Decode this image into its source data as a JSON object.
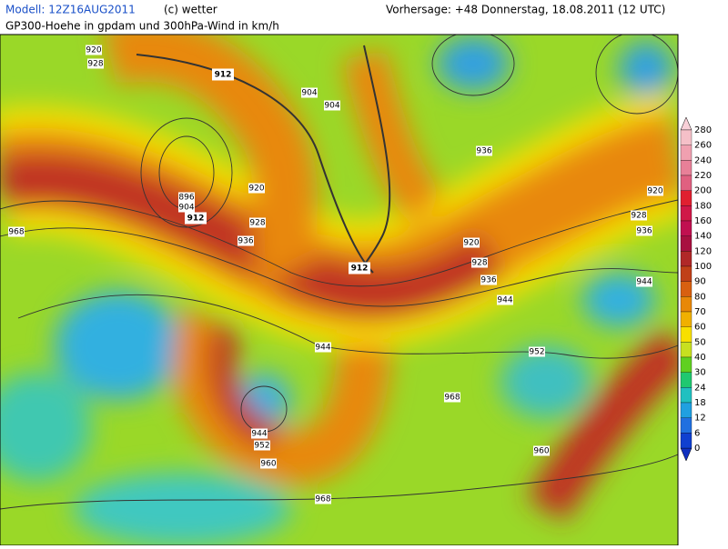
{
  "header": {
    "model": "Modell: 12Z16AUG2011",
    "copyright": "(c) wetter",
    "forecast": "Vorhersage: +48  Donnerstag, 18.08.2011 (12 UTC)",
    "subtitle": "GP300-Hoehe in gpdam und 300hPa-Wind in km/h"
  },
  "contour_labels": [
    "920",
    "928",
    "912",
    "904",
    "904",
    "936",
    "920",
    "896",
    "904",
    "912",
    "928",
    "936",
    "968",
    "920",
    "928",
    "936",
    "944",
    "912",
    "920",
    "928",
    "936",
    "944",
    "944",
    "952",
    "968",
    "944",
    "952",
    "960",
    "960",
    "968"
  ],
  "colorbar": {
    "labels": [
      "280",
      "260",
      "240",
      "220",
      "200",
      "180",
      "160",
      "140",
      "120",
      "100",
      "90",
      "80",
      "70",
      "60",
      "50",
      "40",
      "30",
      "24",
      "18",
      "12",
      "6",
      "0"
    ]
  }
}
